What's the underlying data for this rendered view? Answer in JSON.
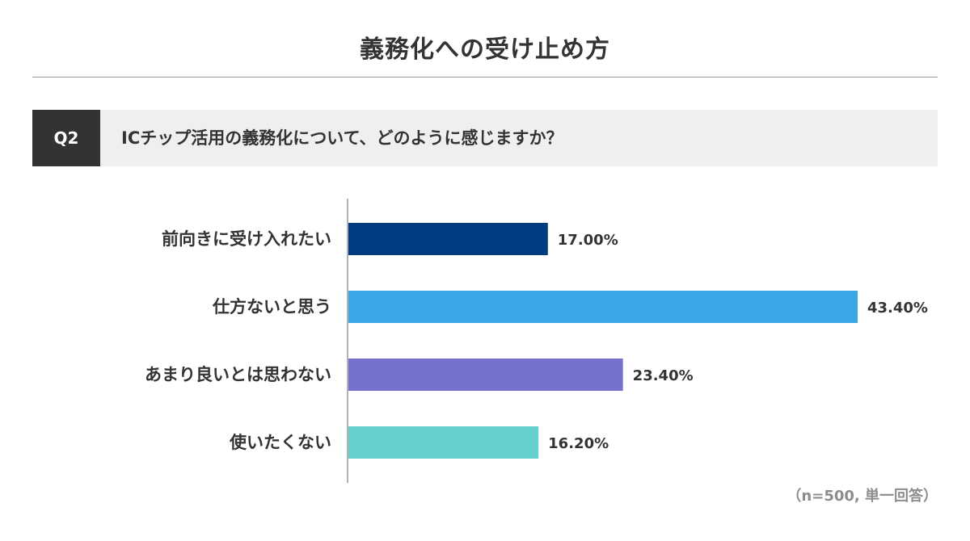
{
  "page": {
    "title": "義務化への受け止め方",
    "question_tag": "Q2",
    "question_text": "ICチップ活用の義務化について、どのように感じますか？",
    "note": "（n=500, 単一回答）"
  },
  "chart_data": {
    "type": "bar",
    "orientation": "horizontal",
    "title": "",
    "xlabel": "",
    "ylabel": "",
    "xlim": [
      0,
      43.4
    ],
    "grid": false,
    "legend": "none",
    "categories": [
      "前向きに受け入れたい",
      "仕方ないと思う",
      "あまり良いとは思わない",
      "使いたくない"
    ],
    "values": [
      17.0,
      43.4,
      23.4,
      16.2
    ],
    "value_labels": [
      "17.00%",
      "43.40%",
      "23.40%",
      "16.20%"
    ],
    "colors": [
      "#003c80",
      "#3aa6e6",
      "#7472cc",
      "#66d1cc"
    ]
  }
}
